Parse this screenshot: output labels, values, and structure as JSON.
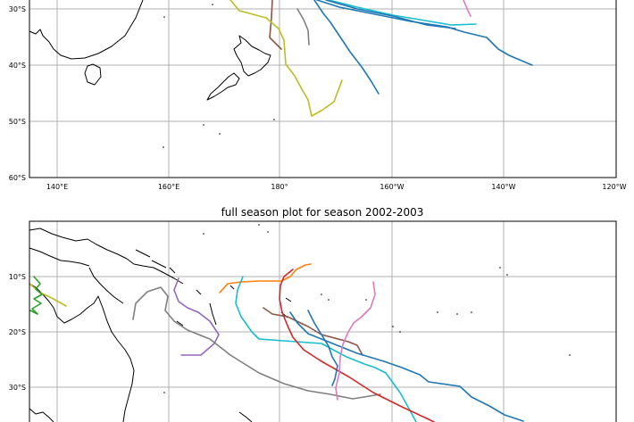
{
  "top_map": {
    "y_ticks": [
      "30°S",
      "40°S",
      "50°S",
      "60°S"
    ],
    "x_ticks": [
      "140°E",
      "160°E",
      "180°",
      "160°W",
      "140°W",
      "120°W"
    ],
    "tracks": [
      {
        "color": "#8c564b"
      },
      {
        "color": "#7f7f7f"
      },
      {
        "color": "#bcbd22"
      },
      {
        "color": "#1f77b4"
      },
      {
        "color": "#1f77b4"
      },
      {
        "color": "#17becf"
      },
      {
        "color": "#1f77b4"
      },
      {
        "color": "#e377c2"
      }
    ]
  },
  "bottom_map": {
    "title": "full season plot for season 2002-2003",
    "y_ticks": [
      "10°S",
      "20°S",
      "30°S"
    ],
    "tracks": [
      {
        "color": "#bcbd22"
      },
      {
        "color": "#2ca02c"
      },
      {
        "color": "#9467bd"
      },
      {
        "color": "#7f7f7f"
      },
      {
        "color": "#ff7f0e"
      },
      {
        "color": "#17becf"
      },
      {
        "color": "#d62728"
      },
      {
        "color": "#8c564b"
      },
      {
        "color": "#1f77b4"
      },
      {
        "color": "#1f77b4"
      },
      {
        "color": "#e377c2"
      }
    ]
  }
}
